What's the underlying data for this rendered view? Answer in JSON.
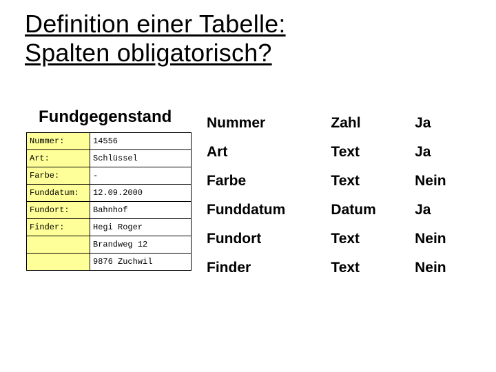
{
  "title_line1": "Definition einer Tabelle:",
  "title_line2": "Spalten obligatorisch?",
  "subheading": "Fundgegenstand",
  "left_table": {
    "label_bg": "#ffff99",
    "value_bg": "#ffffff",
    "border_color": "#000000",
    "font_family": "Courier New",
    "font_size_pt": 9,
    "rows": [
      {
        "label": "Nummer:",
        "value": "14556"
      },
      {
        "label": "Art:",
        "value": "Schlüssel"
      },
      {
        "label": "Farbe:",
        "value": "-"
      },
      {
        "label": "Funddatum:",
        "value": "12.09.2000"
      },
      {
        "label": "Fundort:",
        "value": "Bahnhof"
      },
      {
        "label": "Finder:",
        "value": "Hegi Roger"
      },
      {
        "label": "",
        "value": "Brandweg 12"
      },
      {
        "label": "",
        "value": "9876 Zuchwil"
      }
    ]
  },
  "right_table": {
    "font_family": "Arial",
    "font_size_pt": 16,
    "font_weight": "bold",
    "text_color": "#000000",
    "columns": [
      "field",
      "type",
      "required"
    ],
    "rows": [
      {
        "field": "Nummer",
        "type": "Zahl",
        "required": "Ja"
      },
      {
        "field": "Art",
        "type": "Text",
        "required": "Ja"
      },
      {
        "field": "Farbe",
        "type": "Text",
        "required": "Nein"
      },
      {
        "field": "Funddatum",
        "type": "Datum",
        "required": "Ja"
      },
      {
        "field": "Fundort",
        "type": "Text",
        "required": "Nein"
      },
      {
        "field": "Finder",
        "type": "Text",
        "required": "Nein"
      }
    ]
  },
  "background_color": "#ffffff"
}
